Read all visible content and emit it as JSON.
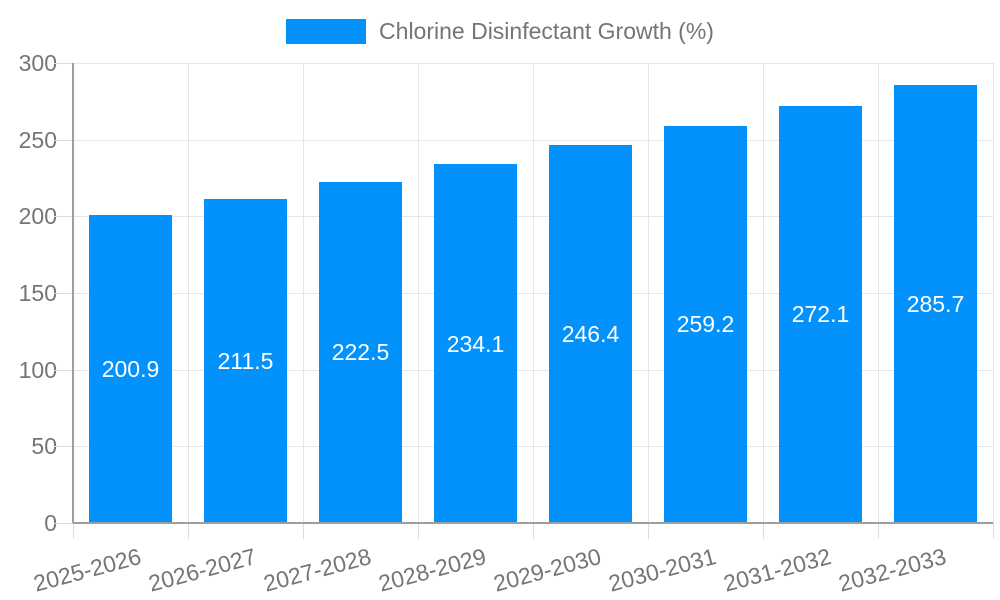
{
  "chart_data": {
    "type": "bar",
    "title": "Chlorine Disinfectant Growth (%)",
    "categories": [
      "2025-2026",
      "2026-2027",
      "2027-2028",
      "2028-2029",
      "2029-2030",
      "2030-2031",
      "2031-2032",
      "2032-2033"
    ],
    "values": [
      200.9,
      211.5,
      222.5,
      234.1,
      246.4,
      259.2,
      272.1,
      285.7
    ],
    "xlabel": "",
    "ylabel": "",
    "ylim": [
      0,
      300
    ],
    "yticks": [
      0,
      50,
      100,
      150,
      200,
      250,
      300
    ],
    "grid": true,
    "legend_position": "top-center",
    "value_labels": "centered-in-bar",
    "x_tick_rotation_deg": -15
  },
  "legend": {
    "label": "Chlorine Disinfectant Growth (%)"
  },
  "colors": {
    "bar": "#0391fb",
    "grid": "#e6e6e6",
    "tick": "#dcdcdc",
    "axis": "#9e9e9e",
    "label_text": "#757575",
    "value_text": "#ffffff",
    "background": "#ffffff"
  }
}
